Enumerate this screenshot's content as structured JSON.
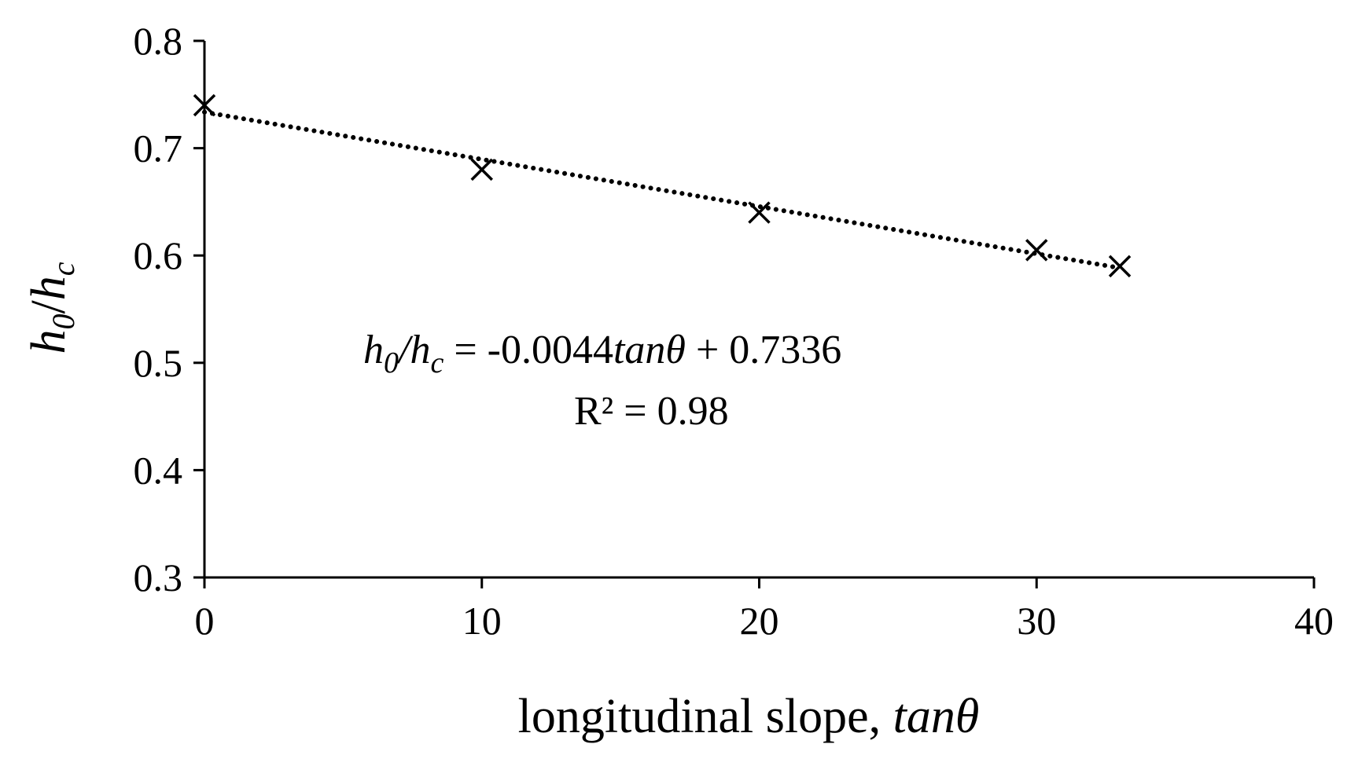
{
  "chart_data": {
    "type": "scatter",
    "xlabel": {
      "prefix": "longitudinal  slope, ",
      "variable": "tanθ"
    },
    "ylabel": {
      "num": "h",
      "num_sub": "0",
      "slash": "/",
      "den": "h",
      "den_sub": "c"
    },
    "xlim": [
      0,
      40
    ],
    "ylim": [
      0.3,
      0.8
    ],
    "x_ticks": [
      "0",
      "10",
      "20",
      "30",
      "40"
    ],
    "y_ticks": [
      "0.3",
      "0.4",
      "0.5",
      "0.6",
      "0.7",
      "0.8"
    ],
    "series": [
      {
        "marker": "x",
        "x": [
          0,
          10,
          20,
          30,
          33
        ],
        "y": [
          0.74,
          0.68,
          0.64,
          0.605,
          0.59
        ]
      }
    ],
    "trendline": {
      "style": "dotted",
      "slope": -0.0044,
      "intercept": 0.7336,
      "x_range": [
        0,
        33
      ]
    },
    "annotation": {
      "eq_lhs_h": "h",
      "eq_lhs_sub0": "0",
      "eq_lhs_slash": "/h",
      "eq_lhs_subc": "c",
      "eq_mid": " = -0.0044",
      "eq_var": "tanθ",
      "eq_rhs": " + 0.7336",
      "r2": "R² = 0.98"
    },
    "colors": {
      "ink": "#000000",
      "background": "#ffffff"
    }
  }
}
